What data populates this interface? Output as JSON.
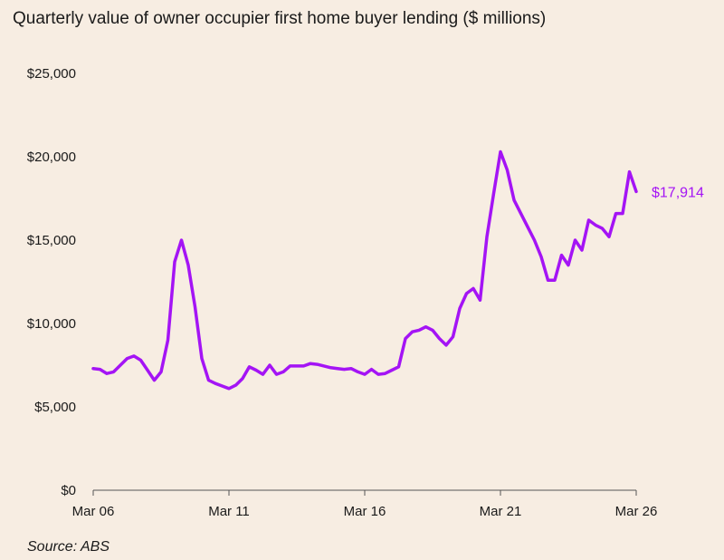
{
  "chart_data": {
    "type": "line",
    "title": "Quarterly value of owner occupier first home buyer lending ($ millions)",
    "source": "Source: ABS",
    "xlabel": "",
    "ylabel": "",
    "ylim": [
      0,
      25000
    ],
    "yticks": [
      {
        "value": 0,
        "label": "$0"
      },
      {
        "value": 5000,
        "label": "$5,000"
      },
      {
        "value": 10000,
        "label": "$10,000"
      },
      {
        "value": 15000,
        "label": "$15,000"
      },
      {
        "value": 20000,
        "label": "$20,000"
      },
      {
        "value": 25000,
        "label": "$25,000"
      }
    ],
    "xticks": [
      {
        "index": 0,
        "label": "Mar 06"
      },
      {
        "index": 20,
        "label": "Mar 11"
      },
      {
        "index": 40,
        "label": "Mar 16"
      },
      {
        "index": 60,
        "label": "Mar 21"
      },
      {
        "index": 80,
        "label": "Mar 26"
      }
    ],
    "grid": false,
    "line_color": "#a414f5",
    "end_label": "$17,914",
    "series": [
      {
        "values": [
          7300,
          7250,
          7000,
          7100,
          7500,
          7900,
          8050,
          7800,
          7200,
          6600,
          7100,
          9000,
          13700,
          15000,
          13500,
          11000,
          7900,
          6600,
          6400,
          6250,
          6100,
          6300,
          6700,
          7400,
          7200,
          6950,
          7500,
          6950,
          7100,
          7450,
          7450,
          7450,
          7600,
          7550,
          7450,
          7350,
          7300,
          7250,
          7300,
          7100,
          6950,
          7250,
          6950,
          7000,
          7200,
          7400,
          9100,
          9500,
          9600,
          9800,
          9600,
          9100,
          8700,
          9200,
          10900,
          11800,
          12100,
          11400,
          15200,
          17800,
          20300,
          19200,
          17400,
          16600,
          15800,
          15000,
          14000,
          12600,
          12600,
          14100,
          13500,
          15000,
          14400,
          16200,
          15900,
          15700,
          15200,
          16600,
          16600,
          19100,
          17914
        ]
      }
    ]
  }
}
